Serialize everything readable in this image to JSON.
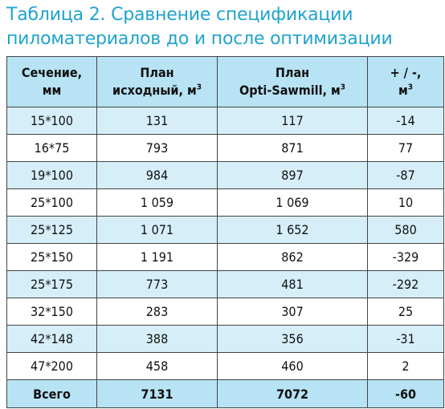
{
  "title": {
    "line1": "Таблица 2. Сравнение спецификации",
    "line2": "пиломатериалов до и после оптимизации"
  },
  "table": {
    "headers": [
      {
        "line1": "Сечение,",
        "line2": "мм",
        "sup": ""
      },
      {
        "line1": "План",
        "line2": "исходный, м",
        "sup": "3"
      },
      {
        "line1": "План",
        "line2": "Opti-Sawmill, м",
        "sup": "3"
      },
      {
        "line1": "+ / -,",
        "line2": "м",
        "sup": "3"
      }
    ],
    "rows": [
      {
        "section": "15*100",
        "initial": "131",
        "optimized": "117",
        "diff": "-14"
      },
      {
        "section": "16*75",
        "initial": "793",
        "optimized": "871",
        "diff": "77"
      },
      {
        "section": "19*100",
        "initial": "984",
        "optimized": "897",
        "diff": "-87"
      },
      {
        "section": "25*100",
        "initial": "1 059",
        "optimized": "1 069",
        "diff": "10"
      },
      {
        "section": "25*125",
        "initial": "1 071",
        "optimized": "1 652",
        "diff": "580"
      },
      {
        "section": "25*150",
        "initial": "1 191",
        "optimized": "862",
        "diff": "-329"
      },
      {
        "section": "25*175",
        "initial": "773",
        "optimized": "481",
        "diff": "-292"
      },
      {
        "section": "32*150",
        "initial": "283",
        "optimized": "307",
        "diff": "25"
      },
      {
        "section": "42*148",
        "initial": "388",
        "optimized": "356",
        "diff": "-31"
      },
      {
        "section": "47*200",
        "initial": "458",
        "optimized": "460",
        "diff": "2"
      }
    ],
    "total": {
      "section": "Всего",
      "initial": "7131",
      "optimized": "7072",
      "diff": "-60"
    }
  }
}
